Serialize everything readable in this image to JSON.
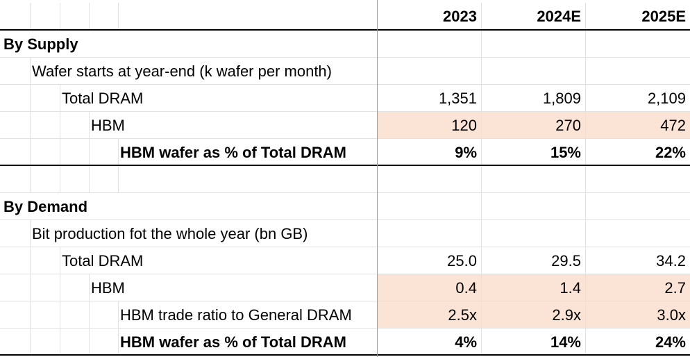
{
  "header": {
    "years": [
      "2023",
      "2024E",
      "2025E"
    ]
  },
  "supply": {
    "section_title": "By Supply",
    "metric_title": "Wafer starts at year-end (k wafer per month)",
    "rows": [
      {
        "label": "Total DRAM",
        "values": [
          "1,351",
          "1,809",
          "2,109"
        ]
      },
      {
        "label": "HBM",
        "values": [
          "120",
          "270",
          "472"
        ]
      },
      {
        "label": "HBM wafer as % of Total DRAM",
        "values": [
          "9%",
          "15%",
          "22%"
        ]
      }
    ]
  },
  "demand": {
    "section_title": "By Demand",
    "metric_title": "Bit production fot the whole year (bn GB)",
    "rows": [
      {
        "label": "Total DRAM",
        "values": [
          "25.0",
          "29.5",
          "34.2"
        ]
      },
      {
        "label": "HBM",
        "values": [
          "0.4",
          "1.4",
          "2.7"
        ]
      },
      {
        "label": "HBM trade ratio to General DRAM",
        "values": [
          "2.5x",
          "2.9x",
          "3.0x"
        ]
      },
      {
        "label": "HBM wafer as % of Total DRAM",
        "values": [
          "4%",
          "14%",
          "24%"
        ]
      }
    ]
  },
  "colors": {
    "highlight": "#fbe4d5",
    "gridline": "#e1e1e1",
    "rule": "#000000"
  }
}
